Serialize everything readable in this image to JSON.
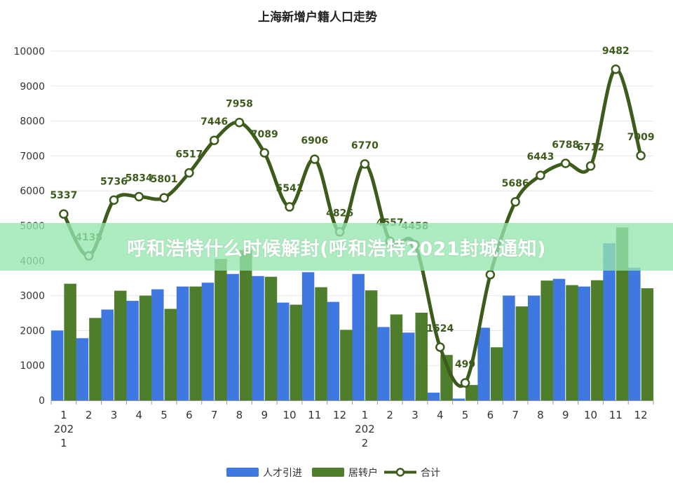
{
  "chart_data": {
    "type": "bar",
    "title": "上海新增户籍人口走势",
    "categories": [
      "1",
      "2",
      "3",
      "4",
      "5",
      "6",
      "7",
      "8",
      "9",
      "10",
      "11",
      "12",
      "1",
      "2",
      "3",
      "4",
      "5",
      "6",
      "7",
      "8",
      "9",
      "10",
      "11",
      "12"
    ],
    "year_labels": [
      {
        "index": 0,
        "line1": "202",
        "line2": "1"
      },
      {
        "index": 12,
        "line1": "202",
        "line2": "2"
      }
    ],
    "ylim": [
      0,
      10000
    ],
    "yticks": [
      "0",
      "1000",
      "2000",
      "3000",
      "4000",
      "5000",
      "6000",
      "7000",
      "8000",
      "9000",
      "10000"
    ],
    "grid": true,
    "legend_position": "bottom",
    "series": [
      {
        "name": "人才引进",
        "kind": "bar",
        "color": "#3e78e0",
        "values": [
          2000,
          1780,
          2600,
          2850,
          3180,
          3260,
          3370,
          3620,
          3560,
          2800,
          3670,
          2820,
          3620,
          2100,
          1940,
          220,
          50,
          2080,
          3000,
          3000,
          3480,
          3260,
          4500,
          3800
        ]
      },
      {
        "name": "居转户",
        "kind": "bar",
        "color": "#4e7d2c",
        "values": [
          3340,
          2360,
          3140,
          3000,
          2620,
          3260,
          4050,
          4300,
          3540,
          2740,
          3240,
          2020,
          3150,
          2460,
          2510,
          1300,
          440,
          1520,
          2690,
          3430,
          3300,
          3440,
          4950,
          3210
        ]
      },
      {
        "name": "合计",
        "kind": "line",
        "color": "#3d5c1c",
        "values": [
          5337,
          4138,
          5736,
          5834,
          5801,
          6517,
          7446,
          7958,
          7089,
          5541,
          6906,
          4826,
          6770,
          4557,
          4458,
          1524,
          499,
          3600,
          5686,
          6443,
          6788,
          6712,
          9482,
          7009
        ]
      }
    ],
    "data_labels": [
      "5337",
      "4138",
      "5736",
      "5834",
      "5801",
      "6517",
      "7446",
      "7958",
      "7089",
      "5541",
      "6906",
      "4826",
      "6770",
      "4557",
      "4458",
      "1524",
      "499",
      "",
      "5686",
      "6443",
      "6788",
      "6712",
      "9482",
      "7009"
    ]
  },
  "watermark": "呼和浩特什么时候解封(呼和浩特2021封城通知)"
}
